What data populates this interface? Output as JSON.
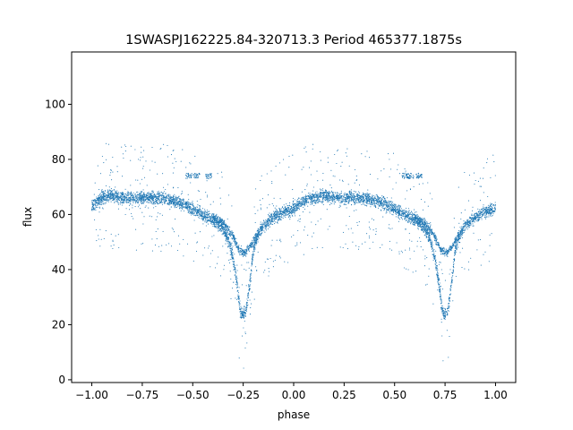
{
  "chart_data": {
    "type": "scatter",
    "title": "1SWASPJ162225.84-320713.3 Period 465377.1875s",
    "xlabel": "phase",
    "ylabel": "flux",
    "xlim": [
      -1.1,
      1.1
    ],
    "ylim": [
      -1,
      119
    ],
    "x_ticks": [
      -1.0,
      -0.75,
      -0.5,
      -0.25,
      0.0,
      0.25,
      0.5,
      0.75,
      1.0
    ],
    "x_tick_labels": [
      "−1.00",
      "−0.75",
      "−0.50",
      "−0.25",
      "0.00",
      "0.25",
      "0.50",
      "0.75",
      "1.00"
    ],
    "y_ticks": [
      0,
      20,
      40,
      60,
      80,
      100
    ],
    "y_tick_labels": [
      "0",
      "20",
      "40",
      "60",
      "80",
      "100"
    ],
    "grid": false,
    "legend": "none",
    "marker_color": "#1f77b4",
    "series": [
      {
        "light_curve": [
          [
            -1.0,
            63
          ],
          [
            -0.95,
            66
          ],
          [
            -0.9,
            67
          ],
          [
            -0.85,
            66
          ],
          [
            -0.8,
            66
          ],
          [
            -0.75,
            66
          ],
          [
            -0.7,
            66
          ],
          [
            -0.65,
            66
          ],
          [
            -0.6,
            65
          ],
          [
            -0.55,
            64
          ],
          [
            -0.5,
            62
          ],
          [
            -0.45,
            60
          ],
          [
            -0.4,
            58
          ],
          [
            -0.35,
            55
          ],
          [
            -0.32,
            50
          ],
          [
            -0.3,
            44
          ],
          [
            -0.28,
            35
          ],
          [
            -0.27,
            28
          ],
          [
            -0.26,
            24
          ],
          [
            -0.24,
            24
          ],
          [
            -0.23,
            28
          ],
          [
            -0.22,
            34
          ],
          [
            -0.21,
            40
          ],
          [
            -0.2,
            47
          ],
          [
            -0.18,
            52
          ],
          [
            -0.15,
            56
          ],
          [
            -0.1,
            59
          ],
          [
            -0.05,
            61
          ],
          [
            0.0,
            62
          ],
          [
            0.05,
            65
          ],
          [
            0.1,
            66
          ],
          [
            0.15,
            67
          ],
          [
            0.2,
            66
          ],
          [
            0.25,
            66
          ],
          [
            0.3,
            66
          ],
          [
            0.35,
            66
          ],
          [
            0.4,
            65
          ],
          [
            0.45,
            64
          ],
          [
            0.5,
            62
          ],
          [
            0.55,
            60
          ],
          [
            0.6,
            58
          ],
          [
            0.65,
            55
          ],
          [
            0.68,
            50
          ],
          [
            0.7,
            44
          ],
          [
            0.72,
            35
          ],
          [
            0.73,
            28
          ],
          [
            0.74,
            24
          ],
          [
            0.76,
            24
          ],
          [
            0.77,
            28
          ],
          [
            0.78,
            34
          ],
          [
            0.79,
            40
          ],
          [
            0.8,
            47
          ],
          [
            0.82,
            52
          ],
          [
            0.85,
            56
          ],
          [
            0.9,
            59
          ],
          [
            0.95,
            61
          ],
          [
            1.0,
            62
          ]
        ],
        "secondary_branch": [
          [
            -0.4,
            59
          ],
          [
            -0.35,
            57
          ],
          [
            -0.3,
            52
          ],
          [
            -0.27,
            47
          ],
          [
            -0.24,
            46
          ],
          [
            -0.21,
            49
          ],
          [
            -0.18,
            53
          ],
          [
            0.6,
            59
          ],
          [
            0.65,
            57
          ],
          [
            0.7,
            52
          ],
          [
            0.73,
            47
          ],
          [
            0.76,
            46
          ],
          [
            0.79,
            49
          ],
          [
            0.82,
            53
          ]
        ],
        "outlier_clumps": [
          [
            -0.52,
            74
          ],
          [
            -0.48,
            74
          ],
          [
            -0.42,
            74
          ],
          [
            0.55,
            74
          ],
          [
            0.58,
            74
          ],
          [
            0.62,
            74
          ]
        ]
      }
    ]
  }
}
